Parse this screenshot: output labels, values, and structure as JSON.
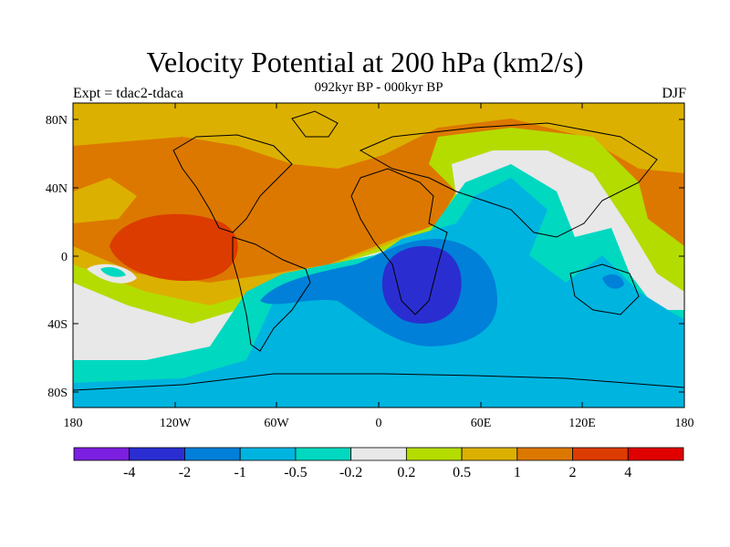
{
  "title": "Velocity Potential at 200 hPa (km2/s)",
  "subtitle": "092kyr BP - 000kyr BP",
  "left_label": "Expt = tdac2-tdaca",
  "right_label": "DJF",
  "lat_ticks": [
    "80N",
    "40N",
    "0",
    "40S",
    "80S"
  ],
  "lon_ticks": [
    "180",
    "120W",
    "60W",
    "0",
    "60E",
    "120E",
    "180"
  ],
  "colorbar": {
    "colors": [
      "#7b1fe0",
      "#2a2ed0",
      "#0080d8",
      "#00b4e0",
      "#00d8c0",
      "#e8e8e8",
      "#b4dc00",
      "#dcb000",
      "#dc7800",
      "#dc3c00",
      "#e00000"
    ],
    "labels": [
      "-4",
      "-2",
      "-1",
      "-0.5",
      "-0.2",
      "0.2",
      "0.5",
      "1",
      "2",
      "4"
    ]
  }
}
